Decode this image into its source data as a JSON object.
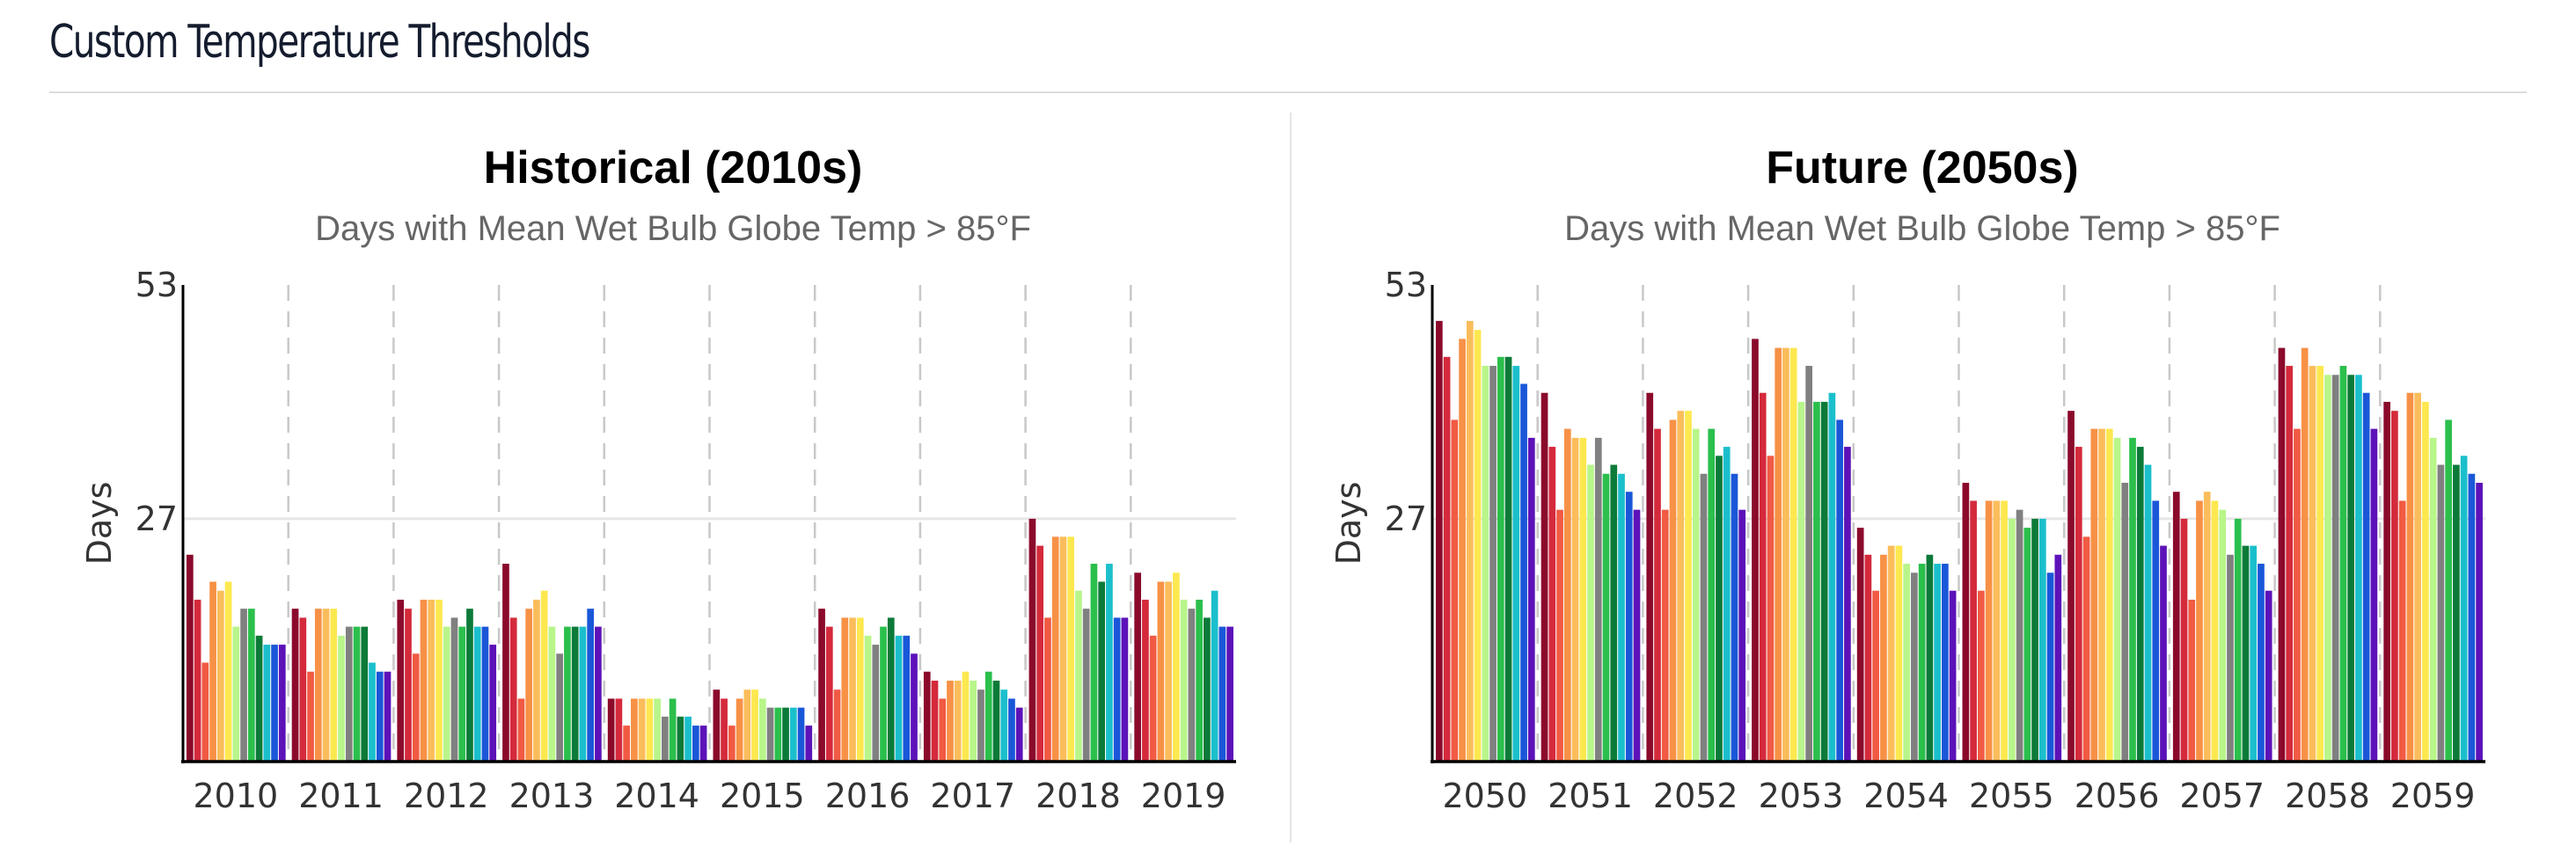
{
  "page": {
    "title": "Custom Temperature Thresholds"
  },
  "series_colors": [
    "#8b0a2c",
    "#d42a3c",
    "#f15a43",
    "#f79146",
    "#fbbd5b",
    "#fde84f",
    "#b8f58a",
    "#808080",
    "#2bbf4c",
    "#0c7a38",
    "#1bbfcc",
    "#1a57d8",
    "#5c12b8"
  ],
  "chart_data": [
    {
      "type": "bar",
      "title": "Historical (2010s)",
      "subtitle": "Days with Mean Wet Bulb Globe Temp > 85°F",
      "ylabel": "Days",
      "ylim": [
        0,
        53
      ],
      "yticks": [
        "27",
        "53"
      ],
      "grid": "dashed vertical separators between years, horizontal line at 27",
      "categories": [
        "2010",
        "2011",
        "2012",
        "2013",
        "2014",
        "2015",
        "2016",
        "2017",
        "2018",
        "2019"
      ],
      "values": [
        [
          23,
          18,
          11,
          20,
          19,
          20,
          15,
          17,
          17,
          14,
          13,
          13,
          13
        ],
        [
          17,
          16,
          10,
          17,
          17,
          17,
          14,
          15,
          15,
          15,
          11,
          10,
          10
        ],
        [
          18,
          17,
          12,
          18,
          18,
          18,
          15,
          16,
          15,
          17,
          15,
          15,
          13
        ],
        [
          22,
          16,
          7,
          17,
          18,
          19,
          15,
          12,
          15,
          15,
          15,
          17,
          15
        ],
        [
          7,
          7,
          4,
          7,
          7,
          7,
          7,
          5,
          7,
          5,
          5,
          4,
          4
        ],
        [
          8,
          7,
          4,
          7,
          8,
          8,
          7,
          6,
          6,
          6,
          6,
          6,
          4
        ],
        [
          17,
          15,
          8,
          16,
          16,
          16,
          14,
          13,
          15,
          16,
          14,
          14,
          12
        ],
        [
          10,
          9,
          7,
          9,
          9,
          10,
          9,
          8,
          10,
          9,
          8,
          7,
          6
        ],
        [
          27,
          24,
          16,
          25,
          25,
          25,
          19,
          17,
          22,
          20,
          22,
          16,
          16
        ],
        [
          21,
          18,
          14,
          20,
          20,
          21,
          18,
          17,
          18,
          16,
          19,
          15,
          15
        ]
      ]
    },
    {
      "type": "bar",
      "title": "Future (2050s)",
      "subtitle": "Days with Mean Wet Bulb Globe Temp > 85°F",
      "ylabel": "Days",
      "ylim": [
        0,
        53
      ],
      "yticks": [
        "27",
        "53"
      ],
      "grid": "dashed vertical separators between years, horizontal line at 27",
      "categories": [
        "2050",
        "2051",
        "2052",
        "2053",
        "2054",
        "2055",
        "2056",
        "2057",
        "2058",
        "2059"
      ],
      "values": [
        [
          49,
          45,
          38,
          47,
          49,
          48,
          44,
          44,
          45,
          45,
          44,
          42,
          36
        ],
        [
          41,
          35,
          28,
          37,
          36,
          36,
          33,
          36,
          32,
          33,
          32,
          30,
          28
        ],
        [
          41,
          37,
          28,
          38,
          39,
          39,
          37,
          32,
          37,
          34,
          35,
          32,
          28
        ],
        [
          47,
          41,
          34,
          46,
          46,
          46,
          40,
          44,
          40,
          40,
          41,
          38,
          35
        ],
        [
          26,
          23,
          19,
          23,
          24,
          24,
          22,
          21,
          22,
          23,
          22,
          22,
          19
        ],
        [
          31,
          29,
          19,
          29,
          29,
          29,
          27,
          28,
          26,
          27,
          27,
          21,
          23
        ],
        [
          39,
          35,
          25,
          37,
          37,
          37,
          36,
          31,
          36,
          35,
          33,
          29,
          24
        ],
        [
          30,
          27,
          18,
          29,
          30,
          29,
          28,
          23,
          27,
          24,
          24,
          22,
          19
        ],
        [
          46,
          44,
          37,
          46,
          44,
          44,
          43,
          43,
          44,
          43,
          43,
          41,
          37
        ],
        [
          40,
          39,
          29,
          41,
          41,
          40,
          36,
          33,
          38,
          33,
          34,
          32,
          31
        ]
      ]
    }
  ]
}
